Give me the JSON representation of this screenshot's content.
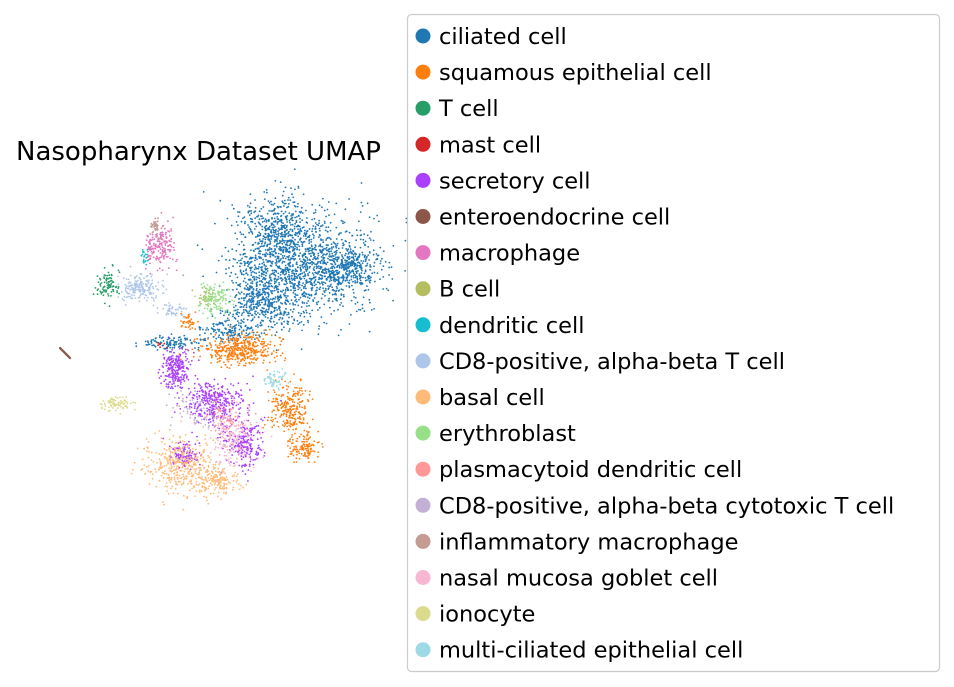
{
  "chart_data": {
    "type": "scatter",
    "title": "Nasopharynx Dataset UMAP",
    "xlabel": "",
    "ylabel": "",
    "axes_visible": false,
    "grid": false,
    "legend_placement": "right, outside plot",
    "series": [
      {
        "name": "ciliated cell",
        "color": "#1f77b4"
      },
      {
        "name": "squamous epithelial cell",
        "color": "#ff7f0e"
      },
      {
        "name": "T cell",
        "color": "#279e68"
      },
      {
        "name": "mast cell",
        "color": "#d62728"
      },
      {
        "name": "secretory cell",
        "color": "#aa40fc"
      },
      {
        "name": "enteroendocrine cell",
        "color": "#8c564b"
      },
      {
        "name": "macrophage",
        "color": "#e377c2"
      },
      {
        "name": "B cell",
        "color": "#b5bd61"
      },
      {
        "name": "dendritic cell",
        "color": "#17becf"
      },
      {
        "name": "CD8-positive, alpha-beta T cell",
        "color": "#aec7e8"
      },
      {
        "name": "basal cell",
        "color": "#ffbb78"
      },
      {
        "name": "erythroblast",
        "color": "#98df8a"
      },
      {
        "name": "plasmacytoid dendritic cell",
        "color": "#ff9896"
      },
      {
        "name": "CD8-positive, alpha-beta cytotoxic T cell",
        "color": "#c5b0d5"
      },
      {
        "name": "inflammatory macrophage",
        "color": "#c49c94"
      },
      {
        "name": "nasal mucosa goblet cell",
        "color": "#f7b6d2"
      },
      {
        "name": "ionocyte",
        "color": "#dbdb8d"
      },
      {
        "name": "multi-ciliated epithelial cell",
        "color": "#9edae5"
      }
    ]
  }
}
